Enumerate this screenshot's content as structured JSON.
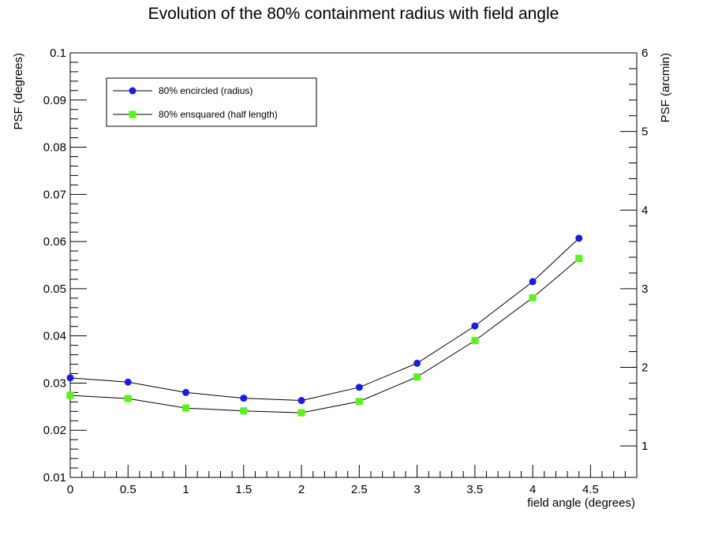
{
  "chart_data": {
    "type": "line",
    "title": "Evolution of the 80% containment radius with field angle",
    "xlabel": "field angle (degrees)",
    "ylabel": "PSF (degrees)",
    "ylabel_right": "PSF (arcmin)",
    "xlim": [
      0,
      4.9
    ],
    "ylim": [
      0.01,
      0.1
    ],
    "ylim_right": [
      0.6,
      6
    ],
    "x_ticks": [
      0,
      0.5,
      1,
      1.5,
      2,
      2.5,
      3,
      3.5,
      4,
      4.5
    ],
    "x_tick_labels": [
      "0",
      "0.5",
      "1",
      "1.5",
      "2",
      "2.5",
      "3",
      "3.5",
      "4",
      "4.5"
    ],
    "y_ticks": [
      0.01,
      0.02,
      0.03,
      0.04,
      0.05,
      0.06,
      0.07,
      0.08,
      0.09,
      0.1
    ],
    "y_tick_labels": [
      "0.01",
      "0.02",
      "0.03",
      "0.04",
      "0.05",
      "0.06",
      "0.07",
      "0.08",
      "0.09",
      "0.1"
    ],
    "y_right_ticks": [
      1,
      2,
      3,
      4,
      5,
      6
    ],
    "y_right_tick_labels": [
      "1",
      "2",
      "3",
      "4",
      "5",
      "6"
    ],
    "grid": false,
    "legend_position": "top-left",
    "x": [
      0,
      0.5,
      1,
      1.5,
      2,
      2.5,
      3,
      3.5,
      4,
      4.4
    ],
    "series": [
      {
        "name": "80% encircled (radius)",
        "marker": "circle",
        "color": "#1a1aee",
        "values": [
          0.0311,
          0.0302,
          0.028,
          0.0268,
          0.0263,
          0.0291,
          0.0342,
          0.0421,
          0.0515,
          0.0607
        ]
      },
      {
        "name": "80% ensquared (half length)",
        "marker": "square",
        "color": "#55f518",
        "values": [
          0.0274,
          0.0267,
          0.0247,
          0.0241,
          0.0237,
          0.0261,
          0.0313,
          0.039,
          0.0481,
          0.0564
        ]
      }
    ]
  }
}
